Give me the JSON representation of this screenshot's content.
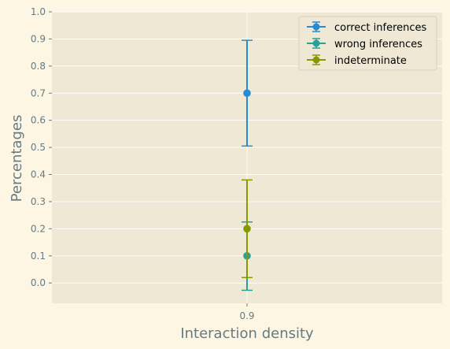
{
  "chart_data": {
    "type": "scatter",
    "title": "",
    "xlabel": "Interaction density",
    "ylabel": "Percentages",
    "x_categories": [
      "0.9"
    ],
    "ylim": [
      -0.075,
      1.0
    ],
    "yticks": [
      "0.0",
      "0.1",
      "0.2",
      "0.3",
      "0.4",
      "0.5",
      "0.6",
      "0.7",
      "0.8",
      "0.9",
      "1.0"
    ],
    "grid": true,
    "legend_position": "top-right",
    "series": [
      {
        "name": "correct inferences",
        "x": "0.9",
        "y": 0.7,
        "err_low": 0.505,
        "err_high": 0.895,
        "color": "#268bd2"
      },
      {
        "name": "wrong inferences",
        "x": "0.9",
        "y": 0.1,
        "err_low": -0.027,
        "err_high": 0.225,
        "color": "#2aa198"
      },
      {
        "name": "indeterminate",
        "x": "0.9",
        "y": 0.2,
        "err_low": 0.02,
        "err_high": 0.38,
        "color": "#859900"
      }
    ]
  }
}
